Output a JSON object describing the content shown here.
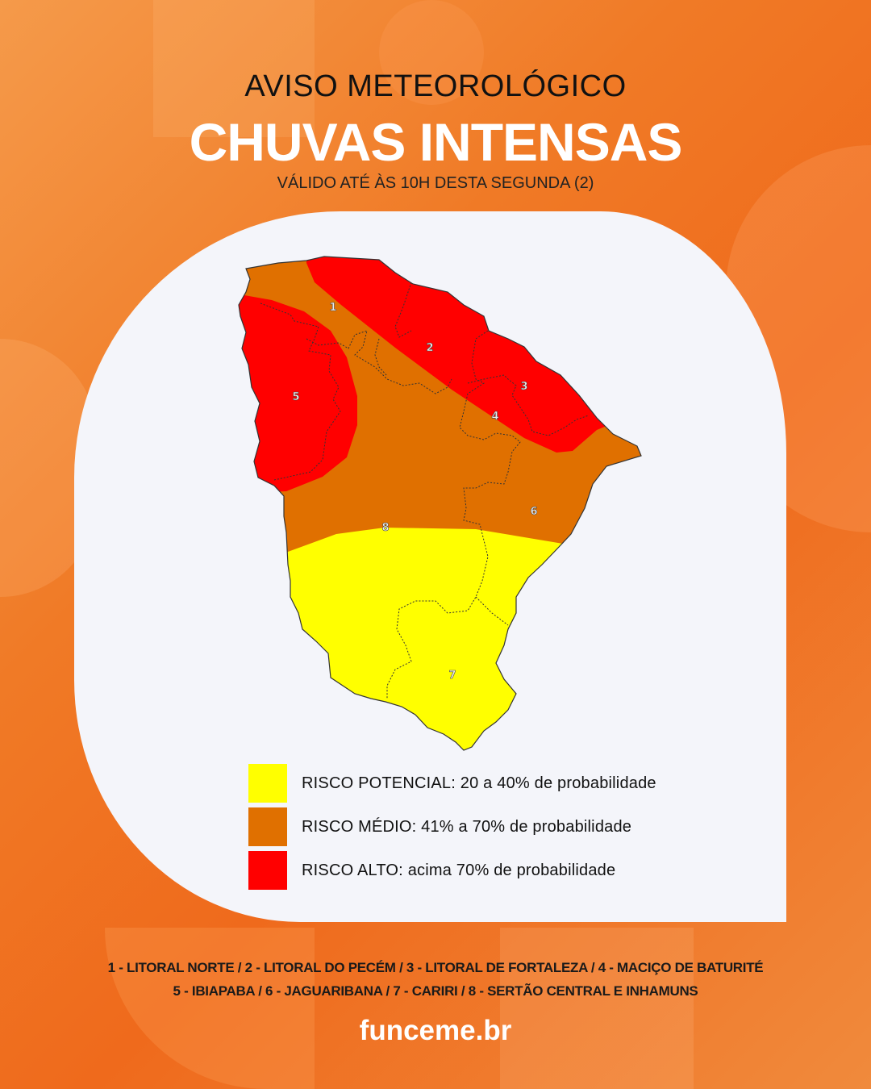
{
  "header": {
    "kicker": "AVISO METEOROLÓGICO",
    "title": "CHUVAS INTENSAS",
    "subtitle": "VÁLIDO ATÉ ÀS 10H DESTA SEGUNDA (2)"
  },
  "map": {
    "region_labels": [
      "1",
      "2",
      "3",
      "4",
      "5",
      "6",
      "7",
      "8"
    ],
    "colors": {
      "potencial": "#ffff00",
      "medio": "#e07000",
      "alto": "#ff0000"
    }
  },
  "legend": [
    {
      "label": "RISCO POTENCIAL: 20 a 40% de probabilidade",
      "color": "#ffff00"
    },
    {
      "label": "RISCO MÉDIO: 41% a 70% de probabilidade",
      "color": "#e07000"
    },
    {
      "label": "RISCO ALTO: acima 70% de probabilidade",
      "color": "#ff0000"
    }
  ],
  "footer": {
    "regions_line1": "1 - LITORAL NORTE /  2 - LITORAL DO PECÉM / 3 - LITORAL DE FORTALEZA / 4 - MACIÇO DE BATURITÉ",
    "regions_line2": "5 - IBIAPABA / 6 - JAGUARIBANA / 7 - CARIRI / 8 - SERTÃO CENTRAL E INHAMUNS",
    "site": "funceme.br"
  }
}
